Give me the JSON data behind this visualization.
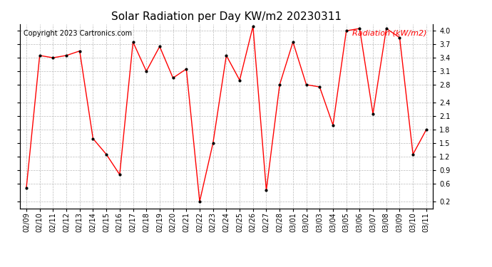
{
  "title": "Solar Radiation per Day KW/m2 20230311",
  "ylabel": "Radiation (kW/m2)",
  "copyright": "Copyright 2023 Cartronics.com",
  "dates": [
    "02/09",
    "02/10",
    "02/11",
    "02/12",
    "02/13",
    "02/14",
    "02/15",
    "02/16",
    "02/17",
    "02/18",
    "02/19",
    "02/20",
    "02/21",
    "02/22",
    "02/23",
    "02/24",
    "02/25",
    "02/26",
    "02/27",
    "02/28",
    "03/01",
    "03/02",
    "03/03",
    "03/04",
    "03/05",
    "03/06",
    "03/07",
    "03/08",
    "03/09",
    "03/10",
    "03/11"
  ],
  "values": [
    0.5,
    3.45,
    3.4,
    3.45,
    3.55,
    1.6,
    1.25,
    0.8,
    3.75,
    3.1,
    3.65,
    2.95,
    3.15,
    0.2,
    1.5,
    3.45,
    2.9,
    4.1,
    0.45,
    2.8,
    3.75,
    2.8,
    2.75,
    1.9,
    4.0,
    4.05,
    2.15,
    4.05,
    3.85,
    1.25,
    1.8
  ],
  "line_color": "#ff0000",
  "marker_color": "#000000",
  "ylabel_color": "#ff0000",
  "copyright_color": "#000000",
  "title_color": "#000000",
  "bg_color": "#ffffff",
  "grid_color": "#aaaaaa",
  "ylim": [
    0.05,
    4.15
  ],
  "yticks": [
    0.2,
    0.6,
    0.9,
    1.2,
    1.5,
    1.8,
    2.1,
    2.4,
    2.8,
    3.1,
    3.4,
    3.7,
    4.0
  ],
  "title_fontsize": 11,
  "ylabel_fontsize": 8,
  "copyright_fontsize": 7,
  "tick_fontsize": 7
}
